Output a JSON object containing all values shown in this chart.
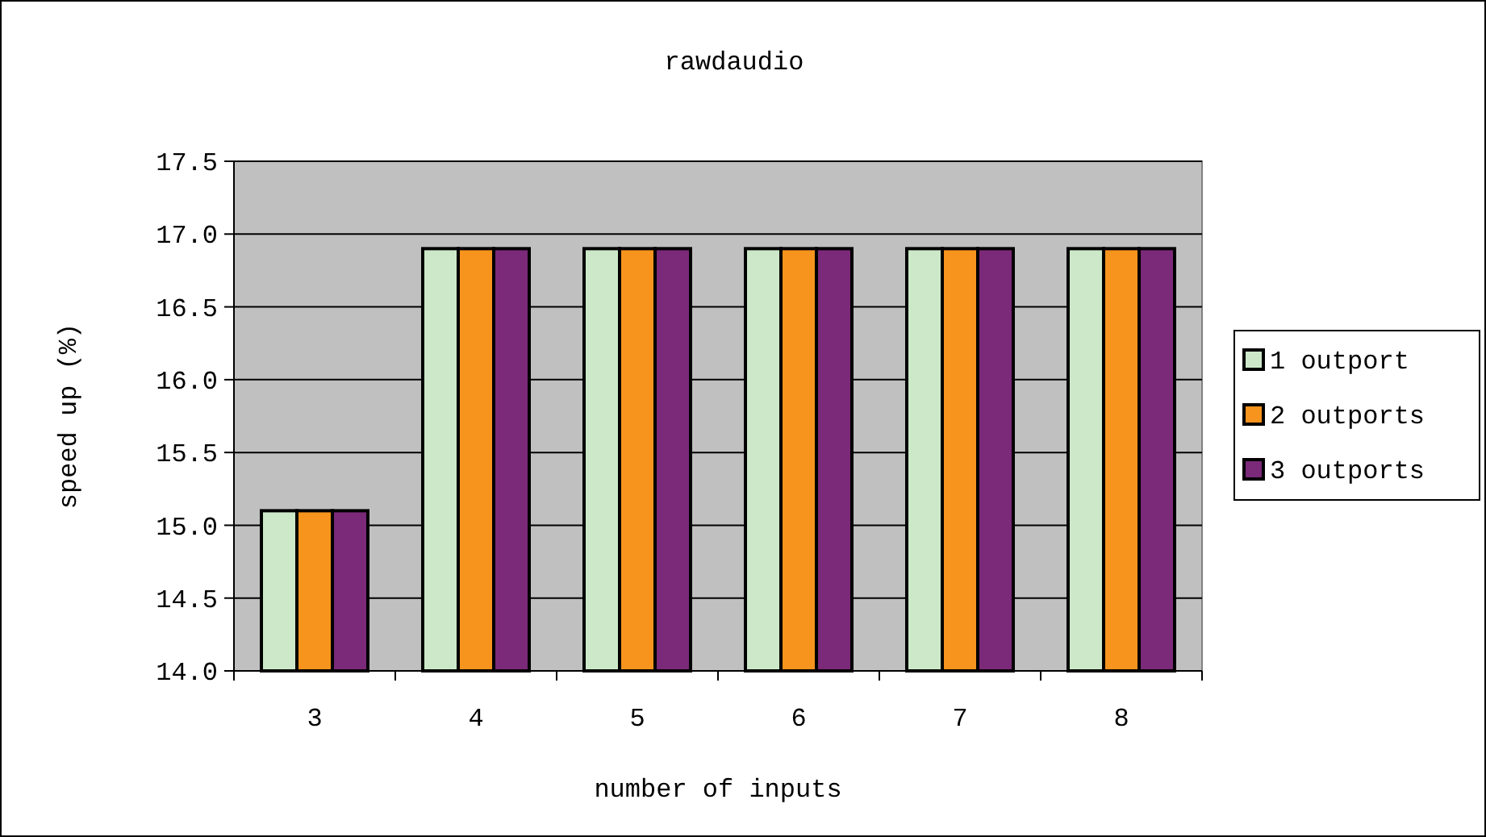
{
  "chart_data": {
    "type": "bar",
    "title": "rawdaudio",
    "xlabel": "number of inputs",
    "ylabel": "speed up (%)",
    "categories": [
      "3",
      "4",
      "5",
      "6",
      "7",
      "8"
    ],
    "series": [
      {
        "name": "1 outport",
        "color": "#cce8c8",
        "values": [
          15.1,
          16.9,
          16.9,
          16.9,
          16.9,
          16.9
        ]
      },
      {
        "name": "2 outports",
        "color": "#f7941d",
        "values": [
          15.1,
          16.9,
          16.9,
          16.9,
          16.9,
          16.9
        ]
      },
      {
        "name": "3 outports",
        "color": "#7b2979",
        "values": [
          15.1,
          16.9,
          16.9,
          16.9,
          16.9,
          16.9
        ]
      }
    ],
    "ylim": [
      14,
      17.5
    ],
    "yticks": [
      {
        "value": 14,
        "label": "14.0"
      },
      14.5,
      {
        "value": 15,
        "label": "15.0"
      },
      15.5,
      {
        "value": 16,
        "label": "16.0"
      },
      16.5,
      {
        "value": 17,
        "label": "17.0"
      },
      17.5
    ],
    "grid": "y",
    "legend": "right"
  }
}
